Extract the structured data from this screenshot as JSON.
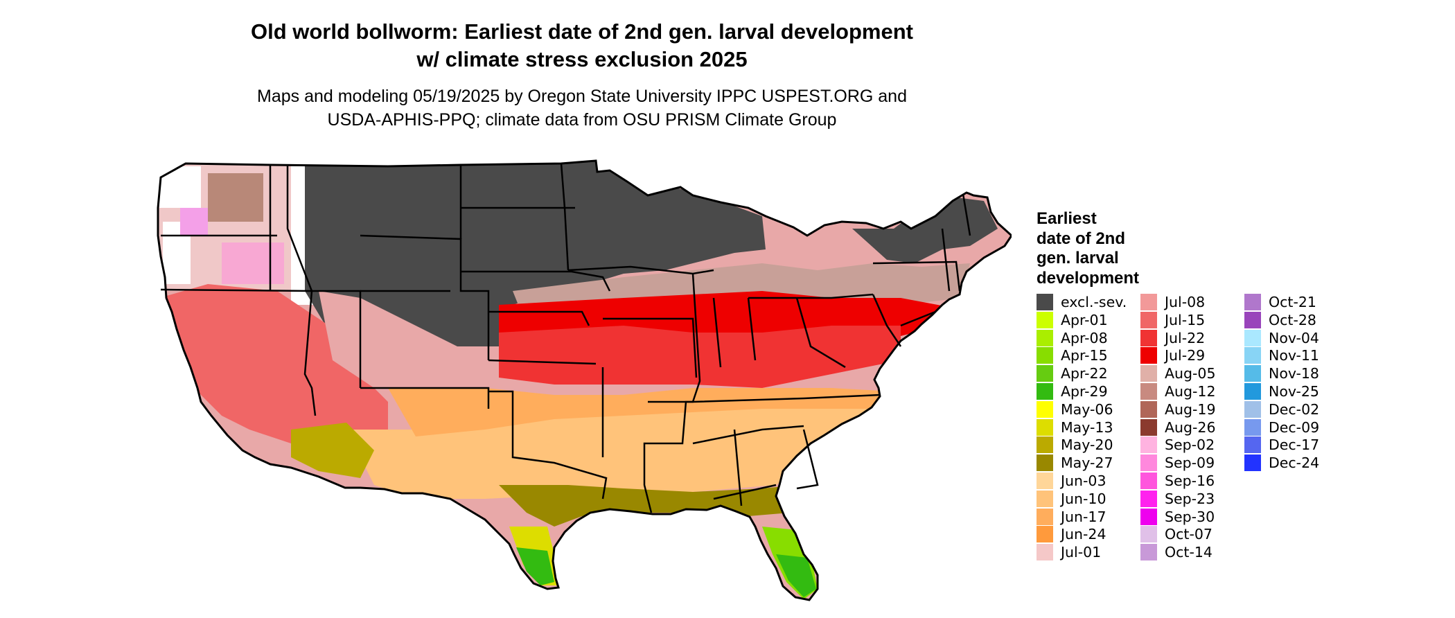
{
  "title": {
    "line1": "Old world bollworm: Earliest date of 2nd gen. larval development",
    "line2": "w/ climate stress exclusion 2025"
  },
  "subtitle": {
    "line1": "Maps and modeling 05/19/2025 by Oregon State University IPPC USPEST.ORG and",
    "line2": "USDA-APHIS-PPQ; climate data from OSU PRISM Climate Group"
  },
  "legend": {
    "title": [
      "Earliest",
      "date of 2nd",
      "gen. larval",
      "development"
    ],
    "columns": [
      [
        {
          "label": "excl.-sev.",
          "color": "#4a4a4a"
        },
        {
          "label": "Apr-01",
          "color": "#ccff00"
        },
        {
          "label": "Apr-08",
          "color": "#aaee00"
        },
        {
          "label": "Apr-15",
          "color": "#88dd00"
        },
        {
          "label": "Apr-22",
          "color": "#66cc11"
        },
        {
          "label": "Apr-29",
          "color": "#33bb11"
        },
        {
          "label": "May-06",
          "color": "#ffff00"
        },
        {
          "label": "May-13",
          "color": "#dddd00"
        },
        {
          "label": "May-20",
          "color": "#bbaa00"
        },
        {
          "label": "May-27",
          "color": "#998800"
        },
        {
          "label": "Jun-03",
          "color": "#ffd699"
        },
        {
          "label": "Jun-10",
          "color": "#ffc37a"
        },
        {
          "label": "Jun-17",
          "color": "#ffad5c"
        },
        {
          "label": "Jun-24",
          "color": "#ff9a3c"
        },
        {
          "label": "Jul-01",
          "color": "#f5c8c8"
        }
      ],
      [
        {
          "label": "Jul-08",
          "color": "#f29999"
        },
        {
          "label": "Jul-15",
          "color": "#f06666"
        },
        {
          "label": "Jul-22",
          "color": "#f03333"
        },
        {
          "label": "Jul-29",
          "color": "#ee0000"
        },
        {
          "label": "Aug-05",
          "color": "#e0b0a8"
        },
        {
          "label": "Aug-12",
          "color": "#c88a80"
        },
        {
          "label": "Aug-19",
          "color": "#b06658"
        },
        {
          "label": "Aug-26",
          "color": "#8b3a2e"
        },
        {
          "label": "Sep-02",
          "color": "#ffb3e0"
        },
        {
          "label": "Sep-09",
          "color": "#ff88dd"
        },
        {
          "label": "Sep-16",
          "color": "#ff55dd"
        },
        {
          "label": "Sep-23",
          "color": "#ff22ee"
        },
        {
          "label": "Sep-30",
          "color": "#ee00ee"
        },
        {
          "label": "Oct-07",
          "color": "#e0c0e8"
        },
        {
          "label": "Oct-14",
          "color": "#c899d8"
        }
      ],
      [
        {
          "label": "Oct-21",
          "color": "#b077cc"
        },
        {
          "label": "Oct-28",
          "color": "#9944bb"
        },
        {
          "label": "Nov-04",
          "color": "#aae8ff"
        },
        {
          "label": "Nov-11",
          "color": "#88d4f5"
        },
        {
          "label": "Nov-18",
          "color": "#55bbe8"
        },
        {
          "label": "Nov-25",
          "color": "#2299dd"
        },
        {
          "label": "Dec-02",
          "color": "#a0c0e8"
        },
        {
          "label": "Dec-09",
          "color": "#7799ee"
        },
        {
          "label": "Dec-17",
          "color": "#5566f0"
        },
        {
          "label": "Dec-24",
          "color": "#2233ff"
        }
      ]
    ]
  }
}
